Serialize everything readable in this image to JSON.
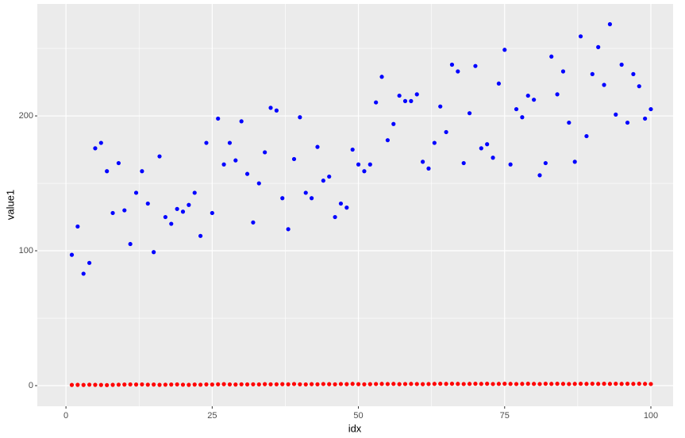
{
  "chart_data": {
    "type": "scatter",
    "xlabel": "idx",
    "ylabel": "value1",
    "x": [
      1,
      2,
      3,
      4,
      5,
      6,
      7,
      8,
      9,
      10,
      11,
      12,
      13,
      14,
      15,
      16,
      17,
      18,
      19,
      20,
      21,
      22,
      23,
      24,
      25,
      26,
      27,
      28,
      29,
      30,
      31,
      32,
      33,
      34,
      35,
      36,
      37,
      38,
      39,
      40,
      41,
      42,
      43,
      44,
      45,
      46,
      47,
      48,
      49,
      50,
      51,
      52,
      53,
      54,
      55,
      56,
      57,
      58,
      59,
      60,
      61,
      62,
      63,
      64,
      65,
      66,
      67,
      68,
      69,
      70,
      71,
      72,
      73,
      74,
      75,
      76,
      77,
      78,
      79,
      80,
      81,
      82,
      83,
      84,
      85,
      86,
      87,
      88,
      89,
      90,
      91,
      92,
      93,
      94,
      95,
      96,
      97,
      98,
      99,
      100
    ],
    "series": [
      {
        "color": "#0000ff",
        "values": [
          97,
          118,
          83,
          91,
          176,
          180,
          159,
          128,
          165,
          130,
          105,
          143,
          159,
          135,
          99,
          170,
          125,
          120,
          131,
          129,
          134,
          143,
          111,
          180,
          128,
          198,
          164,
          180,
          167,
          196,
          157,
          121,
          150,
          173,
          206,
          204,
          139,
          116,
          168,
          199,
          143,
          139,
          177,
          152,
          155,
          125,
          135,
          132,
          175,
          164,
          159,
          164,
          210,
          229,
          182,
          194,
          215,
          211,
          211,
          216,
          166,
          161,
          180,
          207,
          188,
          238,
          233,
          165,
          202,
          237,
          176,
          179,
          169,
          224,
          249,
          164,
          205,
          199,
          215,
          212,
          156,
          165,
          244,
          216,
          233,
          195,
          166,
          259,
          185,
          231,
          251,
          223,
          268,
          201,
          238,
          195,
          231,
          222,
          198,
          205
        ]
      },
      {
        "color": "#ff0000",
        "values": [
          0.5,
          0.6,
          0.5,
          0.7,
          0.6,
          0.5,
          0.4,
          0.6,
          0.7,
          0.8,
          0.9,
          0.8,
          0.9,
          0.7,
          0.8,
          0.6,
          0.7,
          0.8,
          0.9,
          0.7,
          0.6,
          0.8,
          0.7,
          0.9,
          0.8,
          1.0,
          1.1,
          0.9,
          0.8,
          1.0,
          0.9,
          1.0,
          0.9,
          1.1,
          1.0,
          1.0,
          1.1,
          1.0,
          1.2,
          1.0,
          0.9,
          1.1,
          1.0,
          1.2,
          1.1,
          1.0,
          1.2,
          1.1,
          1.3,
          1.1,
          1.0,
          1.1,
          1.2,
          1.3,
          1.2,
          1.3,
          1.1,
          1.2,
          1.3,
          1.2,
          1.1,
          1.2,
          1.3,
          1.4,
          1.3,
          1.4,
          1.3,
          1.2,
          1.3,
          1.4,
          1.3,
          1.4,
          1.2,
          1.3,
          1.4,
          1.3,
          1.2,
          1.3,
          1.4,
          1.3,
          1.2,
          1.4,
          1.3,
          1.4,
          1.3,
          1.2,
          1.3,
          1.4,
          1.3,
          1.4,
          1.3,
          1.4,
          1.3,
          1.4,
          1.3,
          1.4,
          1.3,
          1.4,
          1.3,
          1.2
        ]
      }
    ],
    "xlim": [
      -4.9,
      103.8
    ],
    "xticks": [
      0,
      25,
      50,
      75,
      100
    ],
    "xminor_ticks": [
      12.5,
      37.5,
      62.5,
      87.5
    ],
    "ylim": [
      -15.3,
      283
    ],
    "yticks": [
      0,
      100,
      200
    ],
    "yminor_ticks": [
      50,
      150,
      250
    ],
    "grid": true
  }
}
